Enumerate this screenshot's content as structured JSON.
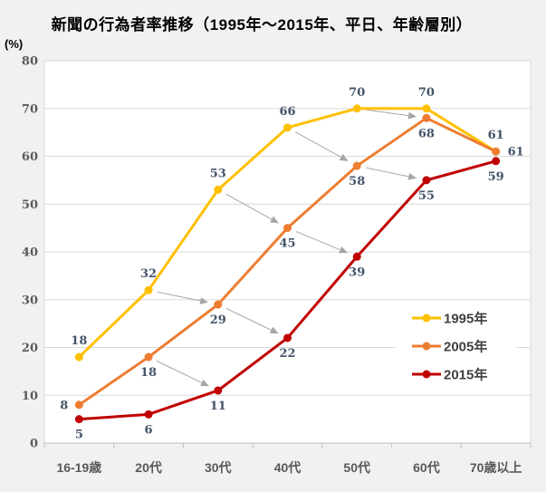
{
  "title": "新聞の行為者率推移（1995年～2015年、平日、年齢層別）",
  "y_axis_unit": "(%)",
  "chart_data": {
    "type": "line",
    "title": "新聞の行為者率推移（1995年～2015年、平日、年齢層別）",
    "categories": [
      "16-19歳",
      "20代",
      "30代",
      "40代",
      "50代",
      "60代",
      "70歳以上"
    ],
    "series": [
      {
        "name": "1995年",
        "color": "#FFC000",
        "values": [
          18,
          32,
          53,
          66,
          70,
          70,
          61
        ],
        "label_placements": [
          "above",
          "above",
          "above",
          "above",
          "above",
          "above",
          "above"
        ]
      },
      {
        "name": "2005年",
        "color": "#ED7D31",
        "values": [
          8,
          18,
          29,
          45,
          58,
          68,
          61
        ],
        "label_placements": [
          "left",
          "below",
          "below",
          "below",
          "below",
          "below",
          "right"
        ]
      },
      {
        "name": "2015年",
        "color": "#C00000",
        "values": [
          5,
          6,
          11,
          22,
          39,
          55,
          59
        ],
        "label_placements": [
          "below",
          "below",
          "below",
          "below",
          "below",
          "below",
          "below"
        ]
      }
    ],
    "ylim": [
      0,
      80
    ],
    "y_ticks": [
      0,
      10,
      20,
      30,
      40,
      50,
      60,
      70,
      80
    ],
    "grid": true,
    "legend": {
      "position": "inside-right",
      "entries": [
        "1995年",
        "2005年",
        "2015年"
      ]
    },
    "cohort_arrows": [
      {
        "from_series": 0,
        "from_category": 1,
        "to_series": 1,
        "to_category": 2
      },
      {
        "from_series": 0,
        "from_category": 2,
        "to_series": 1,
        "to_category": 3
      },
      {
        "from_series": 0,
        "from_category": 3,
        "to_series": 1,
        "to_category": 4
      },
      {
        "from_series": 0,
        "from_category": 4,
        "to_series": 1,
        "to_category": 5
      },
      {
        "from_series": 1,
        "from_category": 1,
        "to_series": 2,
        "to_category": 2
      },
      {
        "from_series": 1,
        "from_category": 2,
        "to_series": 2,
        "to_category": 3
      },
      {
        "from_series": 1,
        "from_category": 3,
        "to_series": 2,
        "to_category": 4
      },
      {
        "from_series": 1,
        "from_category": 4,
        "to_series": 2,
        "to_category": 5
      }
    ],
    "colors": {
      "background": "#F1F1F1",
      "plot_background": "#FFFFFF",
      "plot_border": "#D9D9D9",
      "gridline": "#D9D9D9",
      "axis_line": "#BFBFBF",
      "arrow": "#A6A6A6",
      "data_label": "#44546A",
      "tick_label": "#595959",
      "legend_text": "#404040",
      "title_text": "#000000"
    }
  }
}
